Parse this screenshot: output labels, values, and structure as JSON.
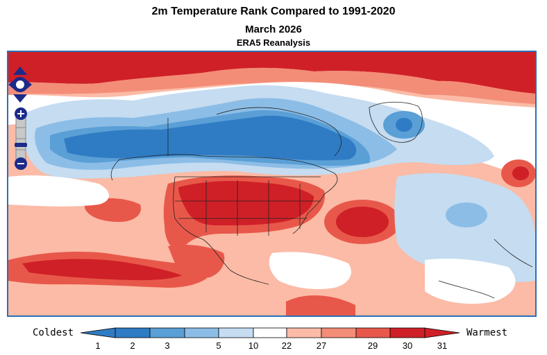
{
  "title": "2m Temperature Rank Compared to 1991-2020",
  "subtitle": "March 2026",
  "source": "ERA5 Reanalysis",
  "legend": {
    "left_label": "Coldest",
    "right_label": "Warmest",
    "ticks": [
      "1",
      "2",
      "3",
      "5",
      "10",
      "22",
      "27",
      "29",
      "30",
      "31"
    ],
    "colors": [
      "#2f7cc4",
      "#5a9fd6",
      "#8cbde6",
      "#c5dcf1",
      "#ffffff",
      "#fbbba6",
      "#f38d78",
      "#e8584a",
      "#cf2027"
    ]
  },
  "controls": {
    "pan_icon": "pan-arrows-icon",
    "zoom_in_icon": "plus-icon",
    "zoom_out_icon": "minus-icon",
    "zoom_slider_icon": "zoom-slider-icon"
  },
  "colors": {
    "frame": "#2a6fb5",
    "control": "#1c2a8a"
  }
}
